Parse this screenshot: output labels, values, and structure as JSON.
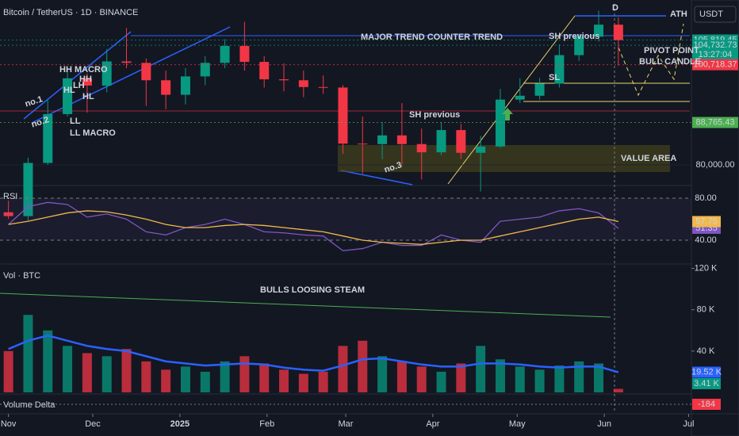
{
  "chart_data": [
    {
      "type": "candlestick",
      "title": "Bitcoin / TetherUS · 1D · BINANCE",
      "currency": "USDT",
      "x": [
        0,
        7,
        14,
        21,
        28,
        35,
        42,
        49,
        56,
        63,
        70,
        77,
        84,
        91,
        98,
        105,
        112,
        119,
        126,
        133,
        140,
        147,
        154,
        161,
        168,
        175,
        182,
        189,
        196,
        203,
        210,
        217
      ],
      "open": [
        70200,
        69400,
        80400,
        90500,
        97900,
        96400,
        101400,
        101100,
        97500,
        94500,
        98300,
        101100,
        104600,
        101300,
        97700,
        97500,
        96100,
        96000,
        84400,
        84300,
        86100,
        84300,
        82600,
        87200,
        82500,
        83800,
        93500,
        94300,
        96800,
        102700,
        106500,
        109000
      ],
      "high": [
        72600,
        81500,
        93400,
        99600,
        98900,
        104000,
        108300,
        102000,
        99500,
        100000,
        102500,
        106000,
        109600,
        102500,
        101000,
        99500,
        98500,
        96500,
        90000,
        88800,
        92800,
        87500,
        88800,
        88500,
        86000,
        95700,
        97900,
        98000,
        104900,
        107100,
        111900,
        110500
      ],
      "low": [
        68800,
        68500,
        80000,
        90000,
        90800,
        95000,
        100000,
        92200,
        91500,
        92500,
        96500,
        100000,
        99500,
        96000,
        95200,
        94000,
        94700,
        82300,
        78200,
        81200,
        80000,
        77000,
        82000,
        81200,
        74500,
        83500,
        92800,
        93500,
        96000,
        101500,
        105500,
        100500
      ],
      "close": [
        69400,
        80400,
        90500,
        97900,
        96400,
        101400,
        101100,
        97500,
        94500,
        98300,
        101100,
        104600,
        101300,
        97700,
        97500,
        96100,
        96000,
        84400,
        84300,
        86100,
        84300,
        82600,
        87200,
        82500,
        83800,
        93500,
        94300,
        96800,
        102700,
        106500,
        109000,
        105800
      ],
      "up_color": "#089981",
      "down_color": "#f23645",
      "xlim": [
        -3,
        243
      ],
      "xticks": [
        {
          "value": 0,
          "label": "Nov"
        },
        {
          "value": 30,
          "label": "Dec"
        },
        {
          "value": 61,
          "label": "2025"
        },
        {
          "value": 92,
          "label": "Feb"
        },
        {
          "value": 120,
          "label": "Mar"
        },
        {
          "value": 151,
          "label": "Apr"
        },
        {
          "value": 181,
          "label": "May"
        },
        {
          "value": 212,
          "label": "Jun"
        },
        {
          "value": 242,
          "label": "Jul"
        }
      ],
      "ylim": [
        75900,
        113280
      ],
      "yticks": [
        {
          "value": 80000,
          "label": "80,000.00"
        }
      ],
      "price_labels": [
        {
          "value": 105819.45,
          "label": "105,819.45",
          "color": "#089981"
        },
        {
          "value": 104732.73,
          "label": "104,732.73",
          "color": "#089981",
          "countdown": "13:27:04"
        },
        {
          "value": 100718.37,
          "label": "100,718.37",
          "color": "#f23645"
        },
        {
          "value": 88765.43,
          "label": "88,765.43",
          "color": "#4caf50"
        }
      ],
      "annotations": [
        {
          "text": "ATH",
          "color": "#ffffff"
        },
        {
          "text": "MAJOR TREND COUNTER TREND",
          "color": "#ffffff"
        },
        {
          "text": "SH previous",
          "color": "#4caf50"
        },
        {
          "text": "SH previous",
          "color": "#4caf50"
        },
        {
          "text": "PIVOT POINT",
          "color": "#f23645"
        },
        {
          "text": "BULL CANDLE",
          "color": "#f23645"
        },
        {
          "text": "SL",
          "color": "#f23645"
        },
        {
          "text": "VALUE AREA",
          "color": "#ffffff"
        },
        {
          "text": "no.1",
          "color": "#ffffff"
        },
        {
          "text": "no.2",
          "color": "#ffffff"
        },
        {
          "text": "no.3",
          "color": "#ffffff"
        },
        {
          "text": "HH MACRO",
          "color": "#ffffff"
        },
        {
          "text": "HH",
          "color": "#ffffff"
        },
        {
          "text": "HL",
          "color": "#ffffff"
        },
        {
          "text": "LH",
          "color": "#ffffff"
        },
        {
          "text": "HL",
          "color": "#ffffff"
        },
        {
          "text": "LL",
          "color": "#ffffff"
        },
        {
          "text": "LL MACRO",
          "color": "#ffffff"
        },
        {
          "text": "D",
          "color": "#ffffff"
        }
      ]
    },
    {
      "type": "line",
      "title": "RSI",
      "ylim": [
        19.6,
        90.6
      ],
      "yticks": [
        {
          "value": 80,
          "label": "80.00"
        },
        {
          "value": 40,
          "label": "40.00"
        }
      ],
      "series": [
        {
          "color": "#7e57c2",
          "values": [
            55,
            72,
            76,
            74,
            62,
            65,
            60,
            48,
            45,
            52,
            55,
            60,
            55,
            48,
            47,
            45,
            44,
            30,
            32,
            38,
            35,
            35,
            45,
            40,
            38,
            58,
            60,
            62,
            68,
            70,
            66,
            51.35
          ]
        },
        {
          "color": "#f0b94b",
          "values": [
            55,
            58,
            62,
            66,
            68,
            67,
            64,
            60,
            55,
            52,
            52,
            54,
            55,
            54,
            52,
            50,
            48,
            44,
            40,
            38,
            37,
            36,
            38,
            40,
            40,
            44,
            48,
            52,
            56,
            60,
            62,
            57.75
          ]
        }
      ]
    },
    {
      "type": "bar",
      "title": "Vol · BTC",
      "annotation": "BULLS LOOSING STEAM",
      "ylim": [
        0,
        121.2
      ],
      "yticks": [
        {
          "value": 120,
          "label": "120 K"
        },
        {
          "value": 80,
          "label": "80 K"
        },
        {
          "value": 40,
          "label": "40 K"
        }
      ],
      "values": [
        40,
        75,
        60,
        45,
        38,
        35,
        42,
        30,
        22,
        25,
        20,
        30,
        35,
        28,
        22,
        18,
        20,
        45,
        50,
        35,
        30,
        25,
        20,
        28,
        45,
        32,
        25,
        22,
        26,
        30,
        28,
        3.41
      ],
      "value_labels_last": "3.41 K",
      "series": [
        {
          "color": "#2962ff",
          "values": [
            42,
            50,
            55,
            50,
            45,
            42,
            40,
            35,
            30,
            28,
            26,
            27,
            28,
            27,
            24,
            22,
            21,
            26,
            32,
            33,
            30,
            27,
            25,
            25,
            28,
            28,
            27,
            25,
            24,
            25,
            25,
            19.52
          ],
          "last_label": "19.52 K"
        }
      ]
    },
    {
      "type": "delta",
      "title": "Volume Delta",
      "value": -184,
      "color": "#f23645"
    }
  ]
}
